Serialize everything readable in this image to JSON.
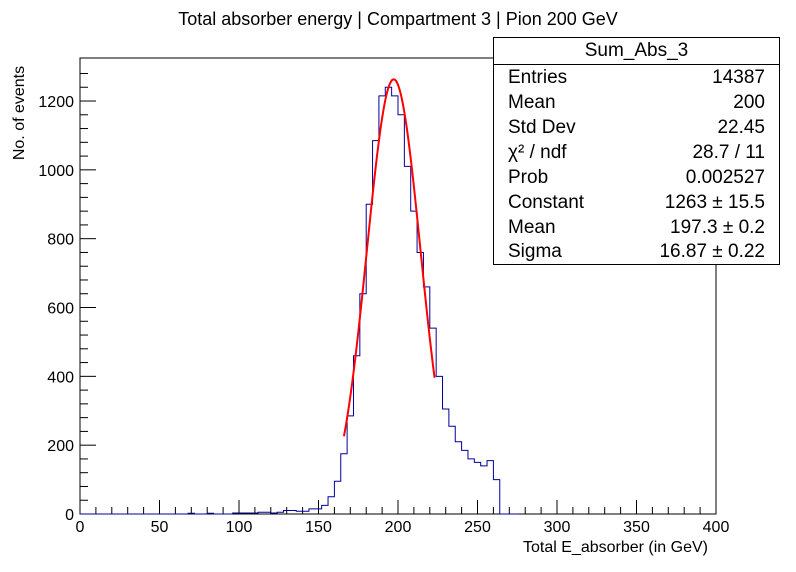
{
  "title": "Total absorber energy | Compartment 3 | Pion 200 GeV",
  "stats": {
    "name": "Sum_Abs_3",
    "rows": [
      {
        "key": "Entries",
        "value": "14387"
      },
      {
        "key": "Mean",
        "value": "200"
      },
      {
        "key": "Std Dev",
        "value": "22.45"
      },
      {
        "key": "χ² / ndf",
        "value": "28.7 / 11"
      },
      {
        "key": "Prob",
        "value": "0.002527"
      },
      {
        "key": "Constant",
        "value": "1263 ± 15.5"
      },
      {
        "key": "Mean",
        "value": "197.3 ± 0.2"
      },
      {
        "key": "Sigma",
        "value": "16.87 ± 0.22"
      }
    ]
  },
  "chart_data": {
    "type": "histogram",
    "title": "Total absorber energy | Compartment 3 | Pion 200 GeV",
    "xlabel": "Total E_absorber (in GeV)",
    "ylabel": "No. of events",
    "xlim": [
      0,
      400
    ],
    "ylim": [
      0,
      1325
    ],
    "x_ticks": [
      0,
      50,
      100,
      150,
      200,
      250,
      300,
      350,
      400
    ],
    "y_ticks": [
      0,
      200,
      400,
      600,
      800,
      1000,
      1200
    ],
    "bin_width": 4,
    "bins": [
      {
        "x": 0,
        "count": 0
      },
      {
        "x": 4,
        "count": 0
      },
      {
        "x": 8,
        "count": 0
      },
      {
        "x": 12,
        "count": 0
      },
      {
        "x": 16,
        "count": 0
      },
      {
        "x": 20,
        "count": 0
      },
      {
        "x": 24,
        "count": 0
      },
      {
        "x": 28,
        "count": 0
      },
      {
        "x": 32,
        "count": 0
      },
      {
        "x": 36,
        "count": 0
      },
      {
        "x": 40,
        "count": 0
      },
      {
        "x": 44,
        "count": 0
      },
      {
        "x": 48,
        "count": 0
      },
      {
        "x": 52,
        "count": 0
      },
      {
        "x": 56,
        "count": 0
      },
      {
        "x": 60,
        "count": 0
      },
      {
        "x": 64,
        "count": 0
      },
      {
        "x": 68,
        "count": 2
      },
      {
        "x": 72,
        "count": 0
      },
      {
        "x": 76,
        "count": 0
      },
      {
        "x": 80,
        "count": 2
      },
      {
        "x": 84,
        "count": 0
      },
      {
        "x": 88,
        "count": 0
      },
      {
        "x": 92,
        "count": 0
      },
      {
        "x": 96,
        "count": 3
      },
      {
        "x": 100,
        "count": 3
      },
      {
        "x": 104,
        "count": 3
      },
      {
        "x": 108,
        "count": 3
      },
      {
        "x": 112,
        "count": 5
      },
      {
        "x": 116,
        "count": 5
      },
      {
        "x": 120,
        "count": 3
      },
      {
        "x": 124,
        "count": 5
      },
      {
        "x": 128,
        "count": 10
      },
      {
        "x": 132,
        "count": 10
      },
      {
        "x": 136,
        "count": 8
      },
      {
        "x": 140,
        "count": 8
      },
      {
        "x": 144,
        "count": 15
      },
      {
        "x": 148,
        "count": 15
      },
      {
        "x": 152,
        "count": 25
      },
      {
        "x": 156,
        "count": 50
      },
      {
        "x": 160,
        "count": 95
      },
      {
        "x": 164,
        "count": 175
      },
      {
        "x": 168,
        "count": 285
      },
      {
        "x": 172,
        "count": 460
      },
      {
        "x": 176,
        "count": 640
      },
      {
        "x": 180,
        "count": 900
      },
      {
        "x": 184,
        "count": 1085
      },
      {
        "x": 188,
        "count": 1215
      },
      {
        "x": 192,
        "count": 1240
      },
      {
        "x": 196,
        "count": 1215
      },
      {
        "x": 200,
        "count": 1160
      },
      {
        "x": 204,
        "count": 1010
      },
      {
        "x": 208,
        "count": 880
      },
      {
        "x": 212,
        "count": 760
      },
      {
        "x": 216,
        "count": 660
      },
      {
        "x": 220,
        "count": 540
      },
      {
        "x": 224,
        "count": 400
      },
      {
        "x": 228,
        "count": 305
      },
      {
        "x": 232,
        "count": 255
      },
      {
        "x": 236,
        "count": 210
      },
      {
        "x": 240,
        "count": 185
      },
      {
        "x": 244,
        "count": 160
      },
      {
        "x": 248,
        "count": 150
      },
      {
        "x": 252,
        "count": 140
      },
      {
        "x": 256,
        "count": 155
      },
      {
        "x": 260,
        "count": 100
      },
      {
        "x": 264,
        "count": 0
      },
      {
        "x": 268,
        "count": 0
      },
      {
        "x": 272,
        "count": 0
      }
    ],
    "fit": {
      "function": "gaus",
      "constant": 1263,
      "mean": 197.3,
      "sigma": 16.87,
      "range": [
        166,
        223
      ],
      "color": "#ff0000"
    },
    "histogram_color": "#000099",
    "grid": false,
    "legend": "top-right"
  }
}
